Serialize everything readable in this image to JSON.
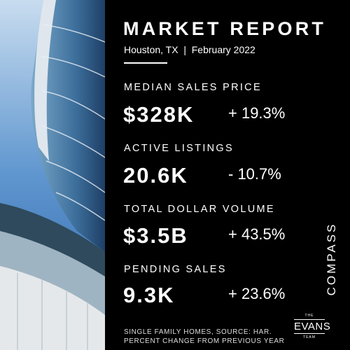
{
  "header": {
    "title": "MARKET REPORT",
    "subtitle": "Houston, TX  |  February 2022"
  },
  "metrics": [
    {
      "label": "MEDIAN SALES PRICE",
      "value": "$328K",
      "change": "+ 19.3%"
    },
    {
      "label": "ACTIVE LISTINGS",
      "value": "20.6K",
      "change": "- 10.7%"
    },
    {
      "label": "TOTAL DOLLAR VOLUME",
      "value": "$3.5B",
      "change": "+ 43.5%"
    },
    {
      "label": "PENDING SALES",
      "value": "9.3K",
      "change": "+ 23.6%"
    }
  ],
  "footnote": [
    "SINGLE FAMILY HOMES, SOURCE: HAR.",
    "PERCENT CHANGE FROM PREVIOUS YEAR"
  ],
  "brand": "COMPASS",
  "logo": {
    "top": "THE",
    "name": "EVANS",
    "bottom": "TEAM"
  }
}
